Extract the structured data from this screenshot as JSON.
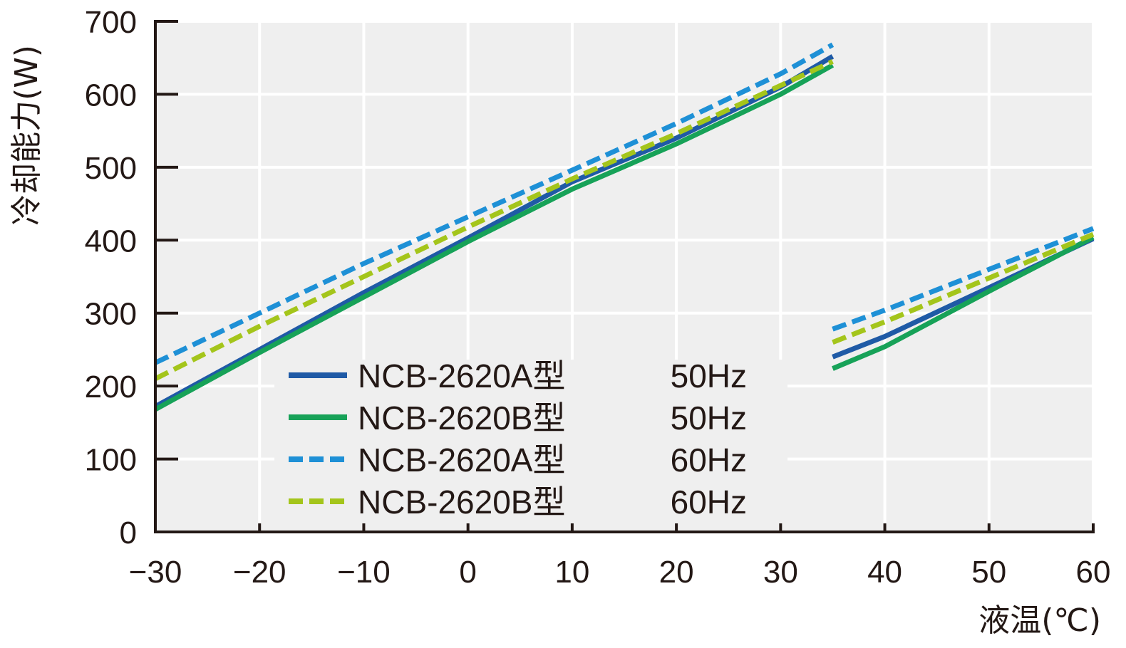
{
  "chart_data": {
    "type": "line",
    "title": "",
    "xlabel": "液温(℃)",
    "ylabel": "冷却能力(W)",
    "xlim": [
      -30,
      60
    ],
    "ylim": [
      0,
      700
    ],
    "grid": true,
    "legend_position": "bottom-center",
    "x_ticks": [
      -30,
      -20,
      -10,
      0,
      10,
      20,
      30,
      40,
      50,
      60
    ],
    "x_tick_labels": [
      "−30",
      "−20",
      "−10",
      "0",
      "10",
      "20",
      "30",
      "40",
      "50",
      "60"
    ],
    "y_ticks": [
      0,
      100,
      200,
      300,
      400,
      500,
      600,
      700
    ],
    "y_tick_labels": [
      "0",
      "100",
      "200",
      "300",
      "400",
      "500",
      "600",
      "700"
    ],
    "series": [
      {
        "name": "NCB-2620A型",
        "freq": "50Hz",
        "color": "#1F5AA6",
        "dash": "solid",
        "segments": [
          [
            [
              -30,
              172
            ],
            [
              -20,
              250
            ],
            [
              -10,
              328
            ],
            [
              0,
              403
            ],
            [
              10,
              480
            ],
            [
              20,
              540
            ],
            [
              30,
              610
            ],
            [
              35,
              652
            ]
          ],
          [
            [
              35,
              240
            ],
            [
              40,
              268
            ],
            [
              50,
              335
            ],
            [
              60,
              402
            ]
          ]
        ]
      },
      {
        "name": "NCB-2620B型",
        "freq": "50Hz",
        "color": "#17A258",
        "dash": "solid",
        "segments": [
          [
            [
              -30,
              168
            ],
            [
              -20,
              246
            ],
            [
              -10,
              322
            ],
            [
              0,
              398
            ],
            [
              10,
              470
            ],
            [
              20,
              532
            ],
            [
              30,
              600
            ],
            [
              35,
              640
            ]
          ],
          [
            [
              35,
              224
            ],
            [
              40,
              254
            ],
            [
              50,
              330
            ],
            [
              60,
              404
            ]
          ]
        ]
      },
      {
        "name": "NCB-2620A型",
        "freq": "60Hz",
        "color": "#1E90D6",
        "dash": "dashed",
        "segments": [
          [
            [
              -30,
              232
            ],
            [
              -20,
              300
            ],
            [
              -10,
              368
            ],
            [
              0,
              432
            ],
            [
              10,
              496
            ],
            [
              20,
              560
            ],
            [
              30,
              628
            ],
            [
              35,
              668
            ]
          ],
          [
            [
              35,
              278
            ],
            [
              40,
              304
            ],
            [
              50,
              360
            ],
            [
              60,
              416
            ]
          ]
        ]
      },
      {
        "name": "NCB-2620B型",
        "freq": "60Hz",
        "color": "#A4C51B",
        "dash": "dashed",
        "segments": [
          [
            [
              -30,
              210
            ],
            [
              -20,
              282
            ],
            [
              -10,
              350
            ],
            [
              0,
              418
            ],
            [
              10,
              484
            ],
            [
              20,
              546
            ],
            [
              30,
              612
            ],
            [
              35,
              645
            ]
          ],
          [
            [
              35,
              260
            ],
            [
              40,
              288
            ],
            [
              50,
              348
            ],
            [
              60,
              408
            ]
          ]
        ]
      }
    ]
  }
}
